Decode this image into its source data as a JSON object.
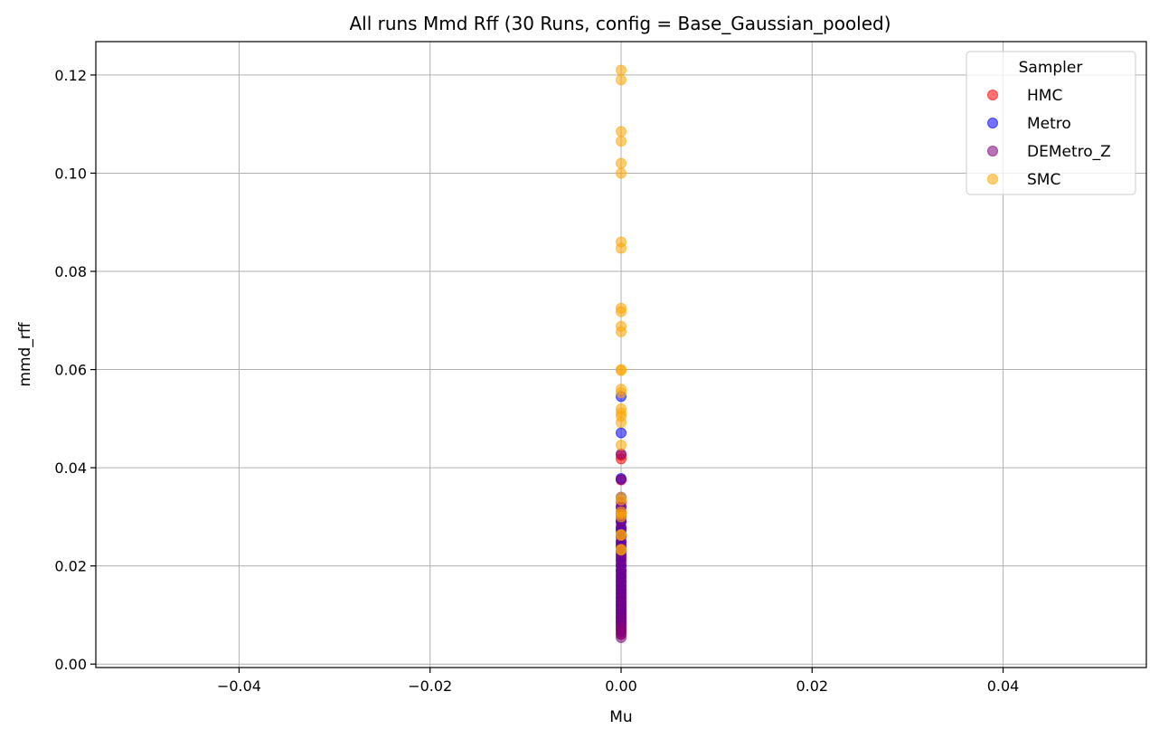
{
  "chart_data": {
    "type": "scatter",
    "title": "All runs Mmd Rff (30 Runs, config = Base_Gaussian_pooled)",
    "xlabel": "Mu",
    "ylabel": "mmd_rff",
    "xlim": [
      -0.055,
      0.055
    ],
    "ylim": [
      -0.0007,
      0.1268
    ],
    "xticks": [
      -0.04,
      -0.02,
      0.0,
      0.02,
      0.04
    ],
    "xtick_labels": [
      "−0.04",
      "−0.02",
      "0.00",
      "0.02",
      "0.04"
    ],
    "yticks": [
      0.0,
      0.02,
      0.04,
      0.06,
      0.08,
      0.1,
      0.12
    ],
    "ytick_labels": [
      "0.00",
      "0.02",
      "0.04",
      "0.06",
      "0.08",
      "0.10",
      "0.12"
    ],
    "grid": true,
    "legend": {
      "title": "Sampler",
      "placement": "top-right"
    },
    "series": [
      {
        "name": "HMC",
        "color": "#ff0000",
        "x": [
          0,
          0,
          0,
          0,
          0,
          0,
          0,
          0,
          0,
          0,
          0,
          0,
          0,
          0,
          0,
          0,
          0,
          0,
          0,
          0,
          0,
          0,
          0,
          0,
          0,
          0,
          0,
          0,
          0,
          0
        ],
        "y": [
          0.0062,
          0.0068,
          0.0072,
          0.0076,
          0.008,
          0.0085,
          0.009,
          0.0096,
          0.0102,
          0.011,
          0.0118,
          0.0126,
          0.0135,
          0.0145,
          0.0155,
          0.0166,
          0.0178,
          0.019,
          0.0203,
          0.0216,
          0.023,
          0.0245,
          0.026,
          0.0276,
          0.0292,
          0.031,
          0.033,
          0.0375,
          0.0418,
          0.0425
        ]
      },
      {
        "name": "Metro",
        "color": "#0000ff",
        "x": [
          0,
          0,
          0,
          0,
          0,
          0,
          0,
          0,
          0,
          0,
          0,
          0,
          0,
          0,
          0,
          0,
          0,
          0,
          0,
          0,
          0,
          0,
          0,
          0,
          0,
          0,
          0,
          0,
          0,
          0
        ],
        "y": [
          0.0085,
          0.0095,
          0.0105,
          0.0112,
          0.012,
          0.0128,
          0.0136,
          0.0144,
          0.0152,
          0.016,
          0.0168,
          0.0176,
          0.0184,
          0.0192,
          0.02,
          0.021,
          0.022,
          0.023,
          0.024,
          0.025,
          0.026,
          0.027,
          0.028,
          0.029,
          0.03,
          0.032,
          0.034,
          0.0378,
          0.0471,
          0.0545
        ]
      },
      {
        "name": "DEMetro_Z",
        "color": "#800080",
        "x": [
          0,
          0,
          0,
          0,
          0,
          0,
          0,
          0,
          0,
          0,
          0,
          0,
          0,
          0,
          0,
          0,
          0,
          0,
          0,
          0,
          0,
          0,
          0,
          0,
          0,
          0,
          0,
          0,
          0,
          0
        ],
        "y": [
          0.0054,
          0.006,
          0.0066,
          0.0072,
          0.0078,
          0.0084,
          0.0092,
          0.01,
          0.0108,
          0.0116,
          0.0124,
          0.0132,
          0.014,
          0.015,
          0.016,
          0.017,
          0.018,
          0.019,
          0.02,
          0.0212,
          0.0224,
          0.0236,
          0.0248,
          0.0262,
          0.0276,
          0.029,
          0.0305,
          0.032,
          0.0376,
          0.0428
        ]
      },
      {
        "name": "SMC",
        "color": "#ffa500",
        "x": [
          0,
          0,
          0,
          0,
          0,
          0,
          0,
          0,
          0,
          0,
          0,
          0,
          0,
          0,
          0,
          0,
          0,
          0,
          0,
          0,
          0,
          0,
          0,
          0,
          0,
          0,
          0,
          0,
          0,
          0
        ],
        "y": [
          0.121,
          0.119,
          0.1085,
          0.1065,
          0.102,
          0.1,
          0.086,
          0.0847,
          0.0725,
          0.0718,
          0.0688,
          0.0677,
          0.06,
          0.0598,
          0.056,
          0.0553,
          0.052,
          0.0512,
          0.0505,
          0.0492,
          0.0446,
          0.034,
          0.0334,
          0.031,
          0.0305,
          0.03,
          0.0264,
          0.0262,
          0.0234,
          0.0232
        ]
      }
    ]
  }
}
